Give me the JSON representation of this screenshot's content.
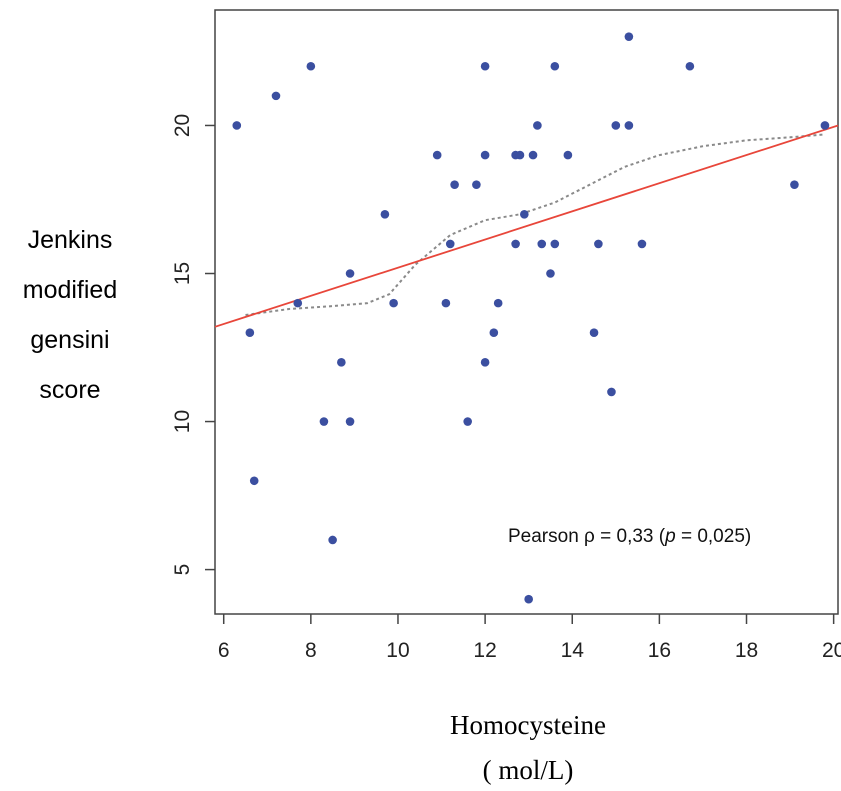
{
  "chart_data": {
    "type": "scatter",
    "xlabel_lines": [
      "Homocysteine",
      "(   mol/L)"
    ],
    "ylabel_lines": [
      "Jenkins",
      "modified",
      "gensini",
      "score"
    ],
    "xlim": [
      5.8,
      20.1
    ],
    "ylim": [
      3.5,
      23.9
    ],
    "xticks": [
      6,
      8,
      10,
      12,
      14,
      16,
      18,
      20
    ],
    "yticks": [
      5,
      10,
      15,
      20
    ],
    "grid": false,
    "annotation": {
      "prefix": "Pearson ",
      "rho": "ρ",
      "mid": " = 0,33 (",
      "p": "p",
      "suffix": " = 0,025)"
    },
    "point_color": "#3b4fa0",
    "fit_line": {
      "color": "#e8463a",
      "x": [
        5.8,
        20.1
      ],
      "y": [
        13.2,
        20.0
      ]
    },
    "smooth_line": {
      "color": "#8a8a8a",
      "points": [
        [
          6.5,
          13.6
        ],
        [
          7.5,
          13.8
        ],
        [
          8.5,
          13.9
        ],
        [
          9.3,
          14.0
        ],
        [
          9.8,
          14.3
        ],
        [
          10.4,
          15.3
        ],
        [
          11.2,
          16.3
        ],
        [
          12.0,
          16.8
        ],
        [
          12.8,
          17.0
        ],
        [
          13.6,
          17.4
        ],
        [
          14.4,
          18.0
        ],
        [
          15.2,
          18.6
        ],
        [
          16.0,
          19.0
        ],
        [
          17.0,
          19.3
        ],
        [
          18.0,
          19.5
        ],
        [
          19.0,
          19.6
        ],
        [
          19.8,
          19.7
        ]
      ]
    },
    "points": [
      {
        "x": 6.3,
        "y": 20
      },
      {
        "x": 6.6,
        "y": 13
      },
      {
        "x": 6.7,
        "y": 8
      },
      {
        "x": 7.2,
        "y": 21
      },
      {
        "x": 7.7,
        "y": 14
      },
      {
        "x": 8.0,
        "y": 22
      },
      {
        "x": 8.3,
        "y": 10
      },
      {
        "x": 8.5,
        "y": 6
      },
      {
        "x": 8.7,
        "y": 12
      },
      {
        "x": 8.9,
        "y": 15
      },
      {
        "x": 8.9,
        "y": 10
      },
      {
        "x": 9.7,
        "y": 17
      },
      {
        "x": 9.9,
        "y": 14
      },
      {
        "x": 10.9,
        "y": 19
      },
      {
        "x": 11.1,
        "y": 14
      },
      {
        "x": 11.2,
        "y": 16
      },
      {
        "x": 11.3,
        "y": 18
      },
      {
        "x": 11.6,
        "y": 10
      },
      {
        "x": 11.8,
        "y": 18
      },
      {
        "x": 12.0,
        "y": 22
      },
      {
        "x": 12.0,
        "y": 19
      },
      {
        "x": 12.0,
        "y": 12
      },
      {
        "x": 12.2,
        "y": 13
      },
      {
        "x": 12.3,
        "y": 14
      },
      {
        "x": 12.7,
        "y": 19
      },
      {
        "x": 12.7,
        "y": 16
      },
      {
        "x": 12.8,
        "y": 19
      },
      {
        "x": 12.9,
        "y": 17
      },
      {
        "x": 13.0,
        "y": 4
      },
      {
        "x": 13.1,
        "y": 19
      },
      {
        "x": 13.2,
        "y": 20
      },
      {
        "x": 13.3,
        "y": 16
      },
      {
        "x": 13.5,
        "y": 15
      },
      {
        "x": 13.6,
        "y": 22
      },
      {
        "x": 13.6,
        "y": 16
      },
      {
        "x": 13.9,
        "y": 19
      },
      {
        "x": 14.5,
        "y": 13
      },
      {
        "x": 14.6,
        "y": 16
      },
      {
        "x": 14.9,
        "y": 11
      },
      {
        "x": 15.0,
        "y": 20
      },
      {
        "x": 15.3,
        "y": 20
      },
      {
        "x": 15.3,
        "y": 23
      },
      {
        "x": 15.6,
        "y": 16
      },
      {
        "x": 16.7,
        "y": 22
      },
      {
        "x": 19.1,
        "y": 18
      },
      {
        "x": 19.8,
        "y": 20
      }
    ]
  }
}
